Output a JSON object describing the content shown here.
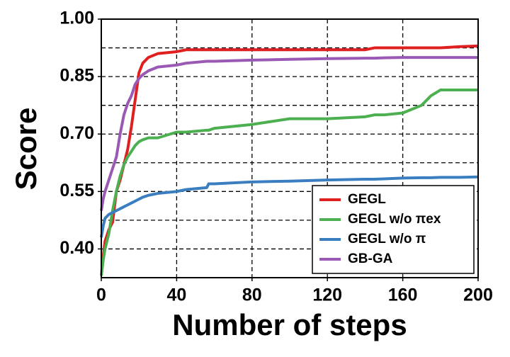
{
  "chart_data": {
    "type": "line",
    "x_label": "Number of steps",
    "y_label": "Score",
    "x": [
      0,
      1,
      2,
      4,
      6,
      8,
      10,
      12,
      14,
      16,
      18,
      20,
      22,
      25,
      30,
      40,
      45,
      56,
      57,
      60,
      80,
      100,
      120,
      140,
      145,
      150,
      160,
      170,
      175,
      180,
      190,
      200
    ],
    "series": [
      {
        "name": "GEGL",
        "color": "#e02020",
        "values": [
          0.33,
          0.38,
          0.42,
          0.45,
          0.47,
          0.55,
          0.58,
          0.62,
          0.66,
          0.72,
          0.79,
          0.86,
          0.885,
          0.9,
          0.91,
          0.915,
          0.92,
          0.92,
          0.92,
          0.92,
          0.92,
          0.92,
          0.92,
          0.92,
          0.925,
          0.925,
          0.925,
          0.925,
          0.925,
          0.925,
          0.928,
          0.93
        ]
      },
      {
        "name": "GEGL w/o πex",
        "color": "#4caf50",
        "values": [
          0.33,
          0.37,
          0.4,
          0.44,
          0.5,
          0.55,
          0.59,
          0.62,
          0.64,
          0.655,
          0.67,
          0.68,
          0.685,
          0.69,
          0.69,
          0.705,
          0.705,
          0.71,
          0.71,
          0.715,
          0.725,
          0.74,
          0.74,
          0.745,
          0.75,
          0.75,
          0.755,
          0.775,
          0.8,
          0.815,
          0.815,
          0.815
        ]
      },
      {
        "name": "GEGL w/o π",
        "color": "#3a7ebf",
        "values": [
          0.43,
          0.46,
          0.48,
          0.49,
          0.495,
          0.5,
          0.505,
          0.51,
          0.515,
          0.52,
          0.525,
          0.53,
          0.535,
          0.54,
          0.545,
          0.55,
          0.555,
          0.56,
          0.57,
          0.57,
          0.575,
          0.577,
          0.58,
          0.582,
          0.582,
          0.583,
          0.585,
          0.586,
          0.586,
          0.587,
          0.587,
          0.588
        ]
      },
      {
        "name": "GB-GA",
        "color": "#9b59b6",
        "values": [
          0.5,
          0.53,
          0.55,
          0.58,
          0.61,
          0.64,
          0.7,
          0.75,
          0.78,
          0.8,
          0.83,
          0.845,
          0.855,
          0.865,
          0.875,
          0.88,
          0.885,
          0.89,
          0.89,
          0.89,
          0.893,
          0.895,
          0.897,
          0.898,
          0.898,
          0.899,
          0.9,
          0.9,
          0.9,
          0.9,
          0.9,
          0.9
        ]
      }
    ],
    "xlim": [
      0,
      200
    ],
    "xticks": [
      0,
      40,
      80,
      120,
      160,
      200
    ],
    "ylim": [
      0.325,
      1.0
    ],
    "yticks": [
      {
        "value": 0.4,
        "label": "0.40"
      },
      {
        "value": 0.55,
        "label": "0.55"
      },
      {
        "value": 0.7,
        "label": "0.70"
      },
      {
        "value": 0.85,
        "label": "0.85"
      },
      {
        "value": 1.0,
        "label": "1.00"
      }
    ],
    "yminorticks": [
      0.475,
      0.625,
      0.775,
      0.925
    ],
    "grid": true,
    "legend": "lower right"
  }
}
